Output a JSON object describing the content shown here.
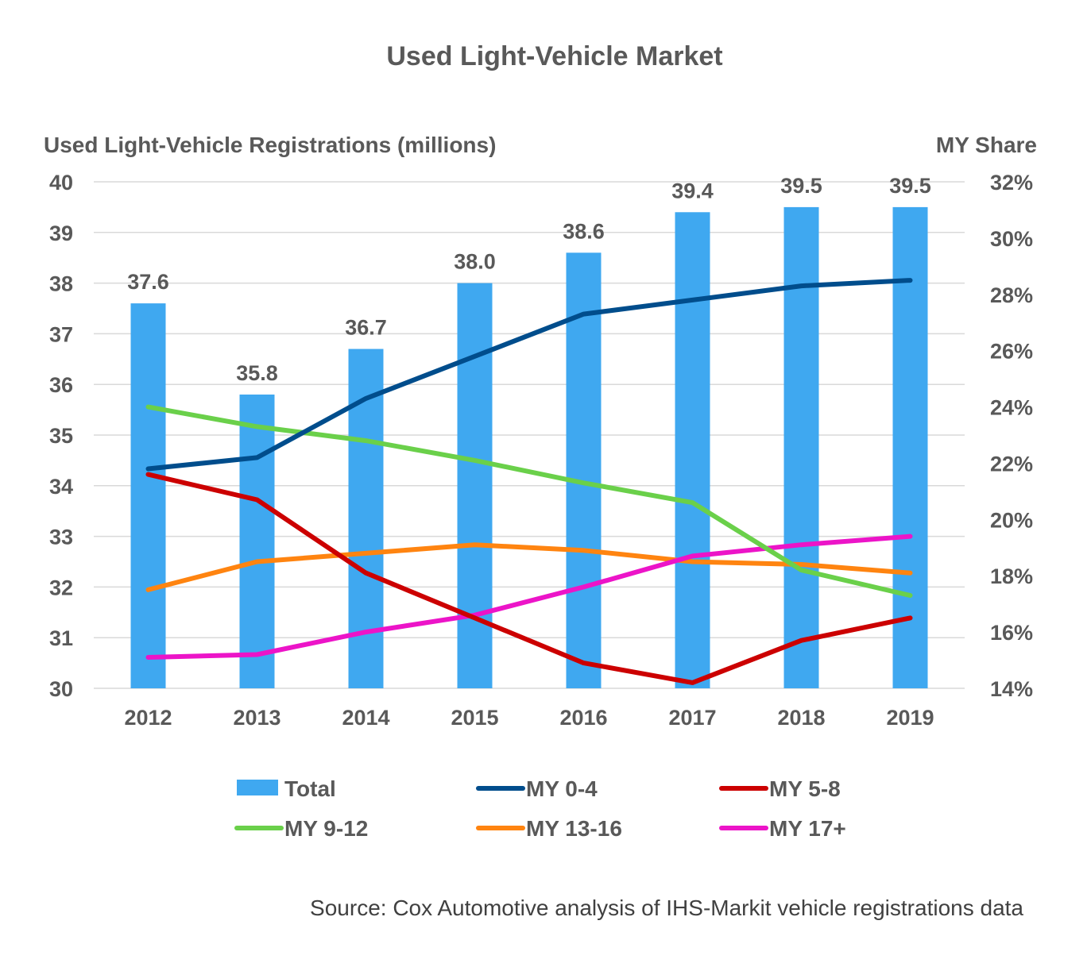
{
  "chart_data": {
    "type": "bar+line",
    "title": "Used Light-Vehicle Market",
    "ylabel_left": "Used Light-Vehicle Registrations (millions)",
    "ylabel_right": "MY Share",
    "source": "Source: Cox Automotive analysis of IHS-Markit vehicle registrations data",
    "categories": [
      "2012",
      "2013",
      "2014",
      "2015",
      "2016",
      "2017",
      "2018",
      "2019"
    ],
    "left_axis": {
      "min": 30,
      "max": 40,
      "ticks": [
        "30",
        "31",
        "32",
        "33",
        "34",
        "35",
        "36",
        "37",
        "38",
        "39",
        "40"
      ]
    },
    "right_axis": {
      "min": 14,
      "max": 32,
      "ticks": [
        "14%",
        "16%",
        "18%",
        "20%",
        "22%",
        "24%",
        "26%",
        "28%",
        "30%",
        "32%"
      ]
    },
    "bars": {
      "name": "Total",
      "color": "#3fa8f0",
      "values": [
        37.6,
        35.8,
        36.7,
        38.0,
        38.6,
        39.4,
        39.5,
        39.5
      ],
      "labels": [
        "37.6",
        "35.8",
        "36.7",
        "38.0",
        "38.6",
        "39.4",
        "39.5",
        "39.5"
      ]
    },
    "series": [
      {
        "name": "MY 0-4",
        "color": "#004d8c",
        "values": [
          21.8,
          22.2,
          24.3,
          25.8,
          27.3,
          27.8,
          28.3,
          28.5
        ]
      },
      {
        "name": "MY 5-8",
        "color": "#cc0000",
        "values": [
          21.6,
          20.7,
          18.1,
          16.5,
          14.9,
          14.2,
          15.7,
          16.5
        ]
      },
      {
        "name": "MY 9-12",
        "color": "#6ad04a",
        "values": [
          24.0,
          23.3,
          22.8,
          22.1,
          21.3,
          20.6,
          18.2,
          17.3
        ]
      },
      {
        "name": "MY 13-16",
        "color": "#ff8410",
        "values": [
          17.5,
          18.5,
          18.8,
          19.1,
          18.9,
          18.5,
          18.4,
          18.1
        ]
      },
      {
        "name": "MY 17+",
        "color": "#ec14c8",
        "values": [
          15.1,
          15.2,
          16.0,
          16.6,
          17.6,
          18.7,
          19.1,
          19.4
        ]
      }
    ],
    "legend": [
      {
        "label": "Total",
        "kind": "bar",
        "color": "#3fa8f0"
      },
      {
        "label": "MY 0-4",
        "kind": "line",
        "color": "#004d8c"
      },
      {
        "label": "MY 5-8",
        "kind": "line",
        "color": "#cc0000"
      },
      {
        "label": "MY 9-12",
        "kind": "line",
        "color": "#6ad04a"
      },
      {
        "label": "MY 13-16",
        "kind": "line",
        "color": "#ff8410"
      },
      {
        "label": "MY 17+",
        "kind": "line",
        "color": "#ec14c8"
      }
    ],
    "legend_position": "bottom",
    "grid": true
  }
}
